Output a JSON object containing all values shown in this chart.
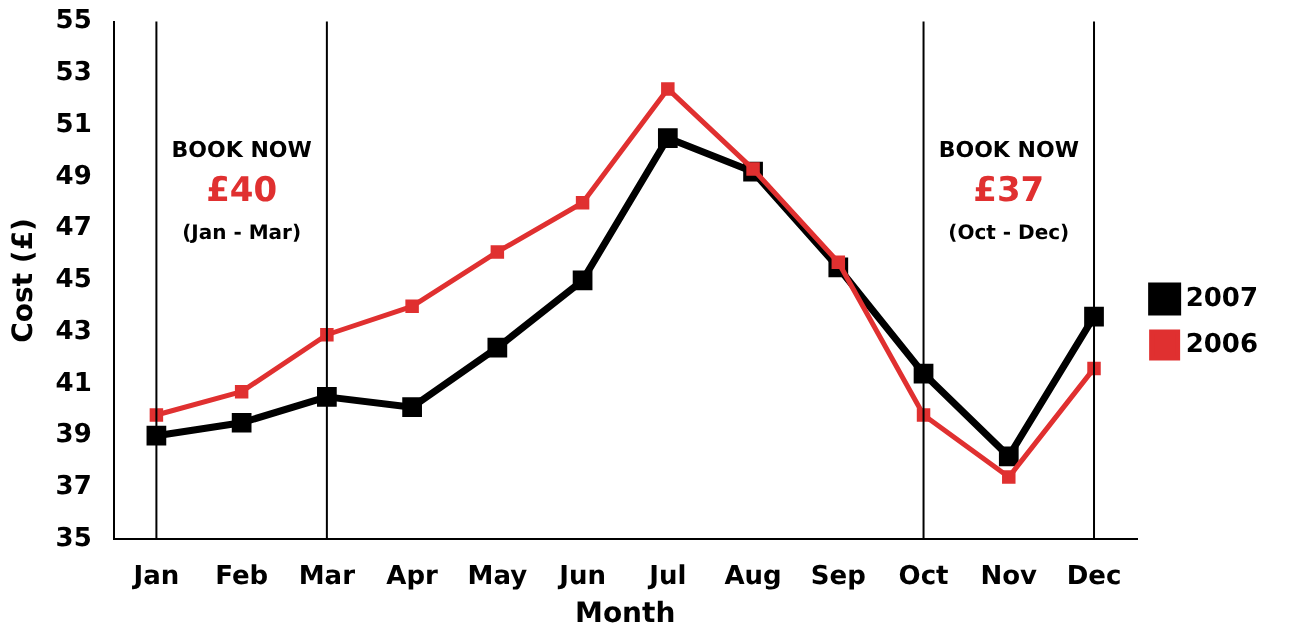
{
  "chart_data": {
    "type": "line",
    "xlabel": "Month",
    "ylabel": "Cost (£)",
    "categories": [
      "Jan",
      "Feb",
      "Mar",
      "Apr",
      "May",
      "Jun",
      "Jul",
      "Aug",
      "Sep",
      "Oct",
      "Nov",
      "Dec"
    ],
    "series": [
      {
        "name": "2007",
        "color": "#000000",
        "values": [
          39.0,
          39.5,
          40.5,
          40.1,
          42.4,
          45.0,
          50.5,
          49.2,
          45.5,
          41.4,
          38.2,
          43.6
        ]
      },
      {
        "name": "2006",
        "color": "#e03030",
        "values": [
          39.8,
          40.7,
          42.9,
          44.0,
          46.1,
          48.0,
          52.4,
          49.3,
          45.7,
          39.8,
          37.4,
          41.6
        ]
      }
    ],
    "ylim": [
      35,
      55
    ],
    "yticks": [
      35,
      37,
      39,
      41,
      43,
      45,
      47,
      49,
      51,
      53,
      55
    ],
    "ref_lines": [
      {
        "axis": "x",
        "value": "Jan"
      },
      {
        "axis": "x",
        "value": "Mar"
      },
      {
        "axis": "x",
        "value": "Oct"
      },
      {
        "axis": "x",
        "value": "Dec"
      }
    ],
    "annotations": [
      "BOOK NOW",
      "£40",
      "(Jan - Mar)",
      "BOOK NOW",
      "£37",
      "(Oct - Dec)"
    ],
    "grid": false,
    "legend": "right",
    "marker": "square",
    "line_style": "solid"
  }
}
